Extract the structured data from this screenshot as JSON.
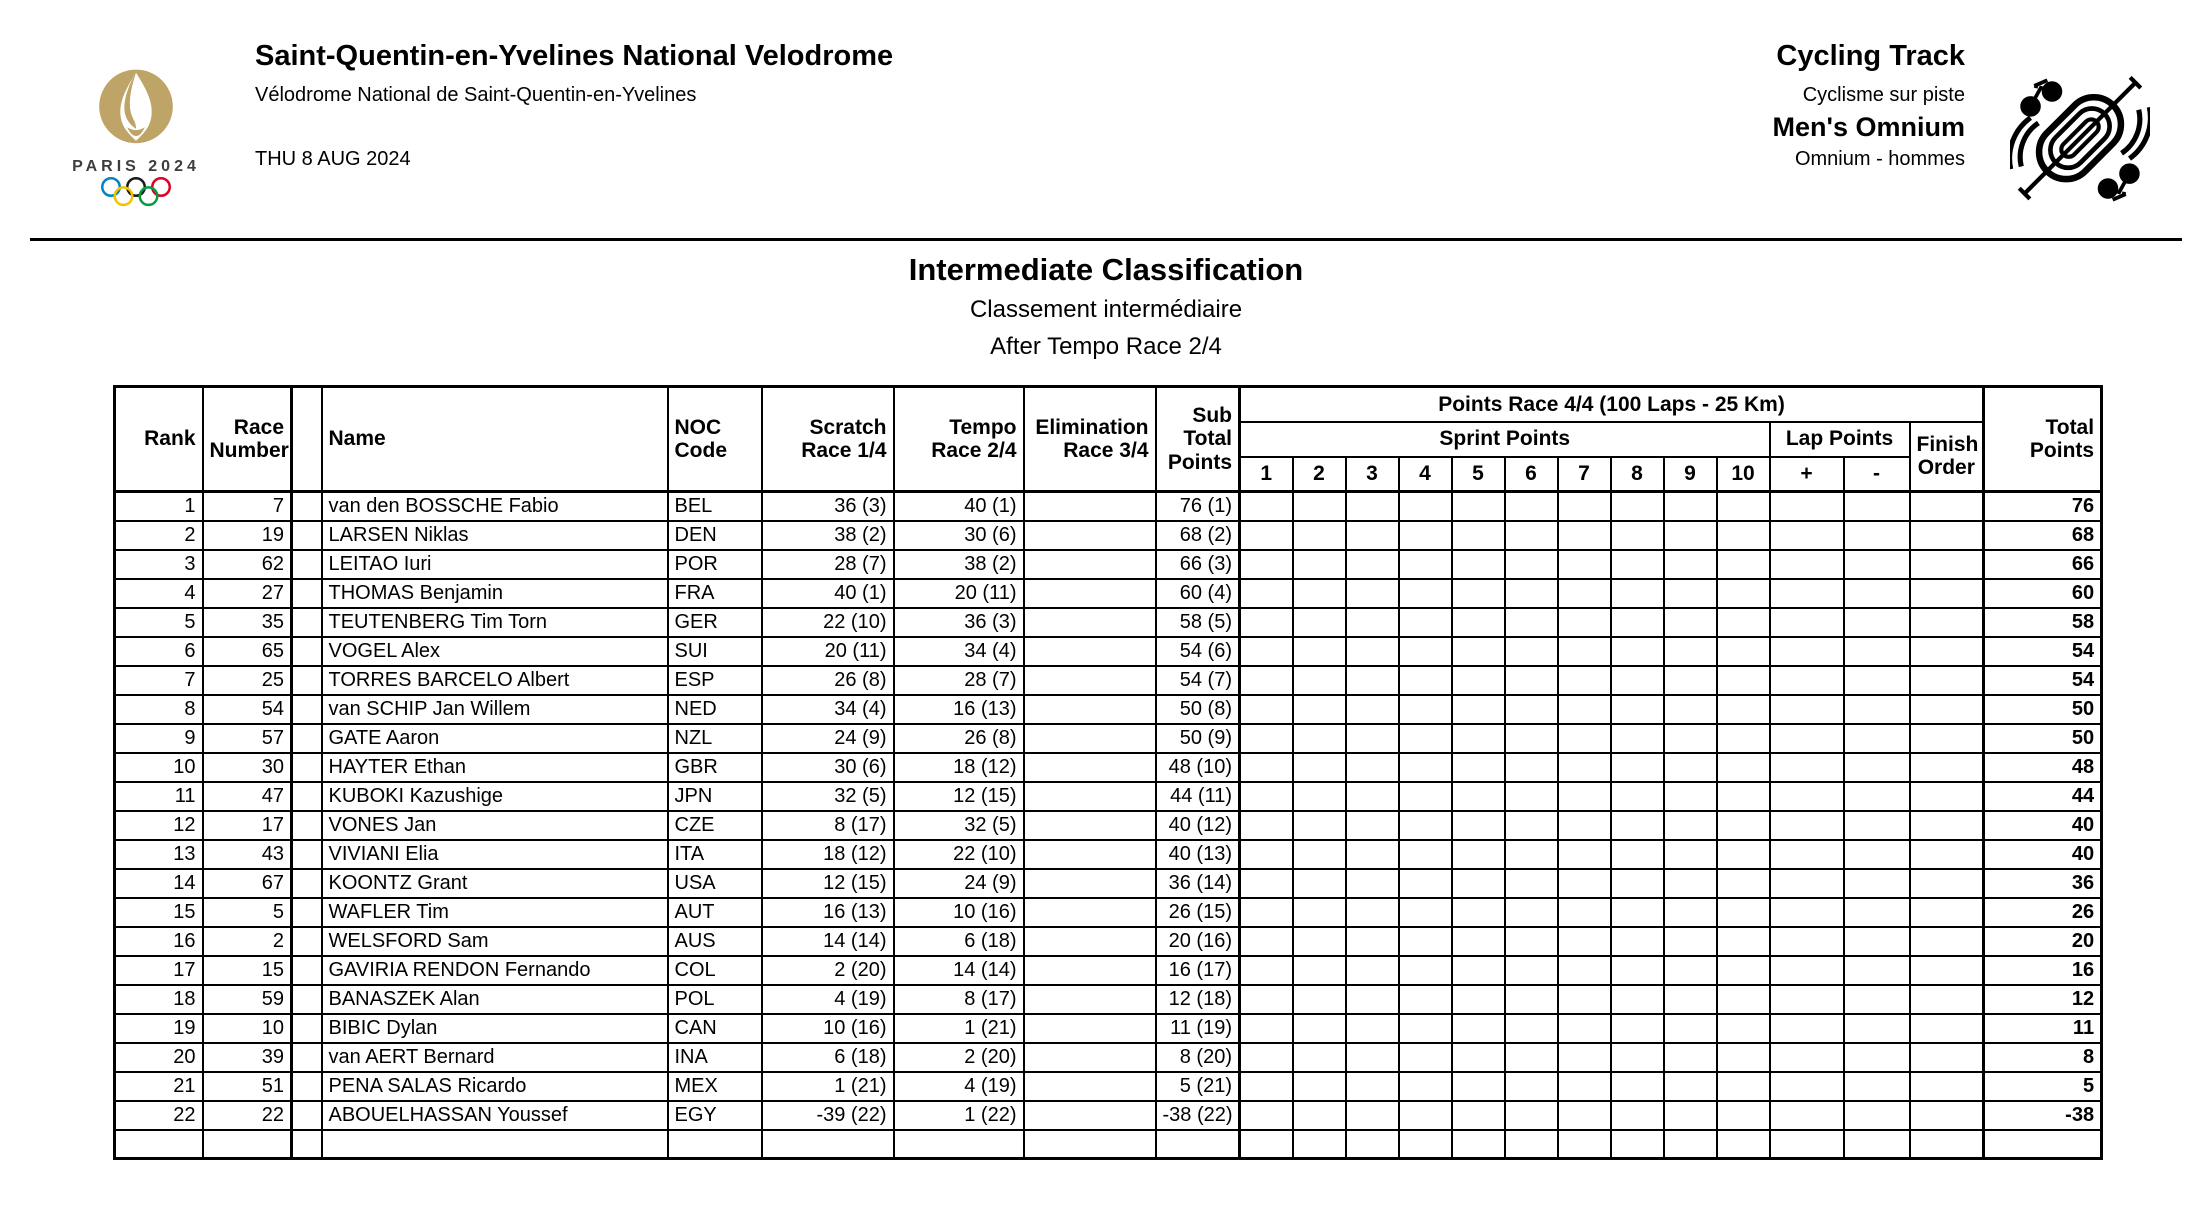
{
  "header": {
    "venue_title": "Saint-Quentin-en-Yvelines National Velodrome",
    "venue_subtitle": "Vélodrome National de Saint-Quentin-en-Yvelines",
    "date": "THU 8 AUG 2024",
    "discipline_title": "Cycling Track",
    "discipline_subtitle": "Cyclisme sur piste",
    "event_title": "Men's Omnium",
    "event_subtitle": "Omnium - hommes",
    "logo_brand": "PARIS 2024",
    "icons": {
      "emblem": "paris-2024-flame-emblem",
      "rings": "olympic-rings-icon",
      "pictogram": "track-cycling-pictogram"
    },
    "colors": {
      "logo_gold": "#BFA468",
      "ring_blue": "#0085C7",
      "ring_yellow": "#F4C300",
      "ring_black": "#1A1A1A",
      "ring_green": "#009F3D",
      "ring_red": "#DF0024"
    }
  },
  "title": {
    "main": "Intermediate Classification",
    "sub_fr": "Classement intermédiaire",
    "stage": "After Tempo Race 2/4"
  },
  "table": {
    "headers": {
      "rank": "Rank",
      "race_number": "Race\nNumber",
      "name": "Name",
      "noc": "NOC\nCode",
      "scratch": "Scratch\nRace 1/4",
      "tempo": "Tempo\nRace 2/4",
      "elimination": "Elimination\nRace 3/4",
      "sub_total": "Sub\nTotal\nPoints",
      "points_race": "Points Race 4/4 (100 Laps - 25 Km)",
      "sprint_points": "Sprint Points",
      "lap_points": "Lap Points",
      "finish_order": "Finish\nOrder",
      "total": "Total\nPoints",
      "sprint_numbers": [
        "1",
        "2",
        "3",
        "4",
        "5",
        "6",
        "7",
        "8",
        "9",
        "10"
      ],
      "lap_plus": "+",
      "lap_minus": "-"
    },
    "rows": [
      {
        "rank": "1",
        "race_number": "7",
        "name": "van den BOSSCHE Fabio",
        "noc": "BEL",
        "scratch": "36 (3)",
        "tempo": "40 (1)",
        "elimination": "",
        "sub_total": "76 (1)",
        "total": "76"
      },
      {
        "rank": "2",
        "race_number": "19",
        "name": "LARSEN Niklas",
        "noc": "DEN",
        "scratch": "38 (2)",
        "tempo": "30 (6)",
        "elimination": "",
        "sub_total": "68 (2)",
        "total": "68"
      },
      {
        "rank": "3",
        "race_number": "62",
        "name": "LEITAO Iuri",
        "noc": "POR",
        "scratch": "28 (7)",
        "tempo": "38 (2)",
        "elimination": "",
        "sub_total": "66 (3)",
        "total": "66"
      },
      {
        "rank": "4",
        "race_number": "27",
        "name": "THOMAS Benjamin",
        "noc": "FRA",
        "scratch": "40 (1)",
        "tempo": "20 (11)",
        "elimination": "",
        "sub_total": "60 (4)",
        "total": "60"
      },
      {
        "rank": "5",
        "race_number": "35",
        "name": "TEUTENBERG Tim Torn",
        "noc": "GER",
        "scratch": "22 (10)",
        "tempo": "36 (3)",
        "elimination": "",
        "sub_total": "58 (5)",
        "total": "58"
      },
      {
        "rank": "6",
        "race_number": "65",
        "name": "VOGEL Alex",
        "noc": "SUI",
        "scratch": "20 (11)",
        "tempo": "34 (4)",
        "elimination": "",
        "sub_total": "54 (6)",
        "total": "54"
      },
      {
        "rank": "7",
        "race_number": "25",
        "name": "TORRES BARCELO Albert",
        "noc": "ESP",
        "scratch": "26 (8)",
        "tempo": "28 (7)",
        "elimination": "",
        "sub_total": "54 (7)",
        "total": "54"
      },
      {
        "rank": "8",
        "race_number": "54",
        "name": "van SCHIP Jan Willem",
        "noc": "NED",
        "scratch": "34 (4)",
        "tempo": "16 (13)",
        "elimination": "",
        "sub_total": "50 (8)",
        "total": "50"
      },
      {
        "rank": "9",
        "race_number": "57",
        "name": "GATE Aaron",
        "noc": "NZL",
        "scratch": "24 (9)",
        "tempo": "26 (8)",
        "elimination": "",
        "sub_total": "50 (9)",
        "total": "50"
      },
      {
        "rank": "10",
        "race_number": "30",
        "name": "HAYTER Ethan",
        "noc": "GBR",
        "scratch": "30 (6)",
        "tempo": "18 (12)",
        "elimination": "",
        "sub_total": "48 (10)",
        "total": "48"
      },
      {
        "rank": "11",
        "race_number": "47",
        "name": "KUBOKI Kazushige",
        "noc": "JPN",
        "scratch": "32 (5)",
        "tempo": "12 (15)",
        "elimination": "",
        "sub_total": "44 (11)",
        "total": "44"
      },
      {
        "rank": "12",
        "race_number": "17",
        "name": "VONES Jan",
        "noc": "CZE",
        "scratch": "8 (17)",
        "tempo": "32 (5)",
        "elimination": "",
        "sub_total": "40 (12)",
        "total": "40"
      },
      {
        "rank": "13",
        "race_number": "43",
        "name": "VIVIANI Elia",
        "noc": "ITA",
        "scratch": "18 (12)",
        "tempo": "22 (10)",
        "elimination": "",
        "sub_total": "40 (13)",
        "total": "40"
      },
      {
        "rank": "14",
        "race_number": "67",
        "name": "KOONTZ Grant",
        "noc": "USA",
        "scratch": "12 (15)",
        "tempo": "24 (9)",
        "elimination": "",
        "sub_total": "36 (14)",
        "total": "36"
      },
      {
        "rank": "15",
        "race_number": "5",
        "name": "WAFLER Tim",
        "noc": "AUT",
        "scratch": "16 (13)",
        "tempo": "10 (16)",
        "elimination": "",
        "sub_total": "26 (15)",
        "total": "26"
      },
      {
        "rank": "16",
        "race_number": "2",
        "name": "WELSFORD Sam",
        "noc": "AUS",
        "scratch": "14 (14)",
        "tempo": "6 (18)",
        "elimination": "",
        "sub_total": "20 (16)",
        "total": "20"
      },
      {
        "rank": "17",
        "race_number": "15",
        "name": "GAVIRIA RENDON Fernando",
        "noc": "COL",
        "scratch": "2 (20)",
        "tempo": "14 (14)",
        "elimination": "",
        "sub_total": "16 (17)",
        "total": "16"
      },
      {
        "rank": "18",
        "race_number": "59",
        "name": "BANASZEK Alan",
        "noc": "POL",
        "scratch": "4 (19)",
        "tempo": "8 (17)",
        "elimination": "",
        "sub_total": "12 (18)",
        "total": "12"
      },
      {
        "rank": "19",
        "race_number": "10",
        "name": "BIBIC Dylan",
        "noc": "CAN",
        "scratch": "10 (16)",
        "tempo": "1 (21)",
        "elimination": "",
        "sub_total": "11 (19)",
        "total": "11"
      },
      {
        "rank": "20",
        "race_number": "39",
        "name": "van AERT Bernard",
        "noc": "INA",
        "scratch": "6 (18)",
        "tempo": "2 (20)",
        "elimination": "",
        "sub_total": "8 (20)",
        "total": "8"
      },
      {
        "rank": "21",
        "race_number": "51",
        "name": "PENA SALAS Ricardo",
        "noc": "MEX",
        "scratch": "1 (21)",
        "tempo": "4 (19)",
        "elimination": "",
        "sub_total": "5 (21)",
        "total": "5"
      },
      {
        "rank": "22",
        "race_number": "22",
        "name": "ABOUELHASSAN Youssef",
        "noc": "EGY",
        "scratch": "-39 (22)",
        "tempo": "1 (22)",
        "elimination": "",
        "sub_total": "-38 (22)",
        "total": "-38"
      }
    ]
  }
}
